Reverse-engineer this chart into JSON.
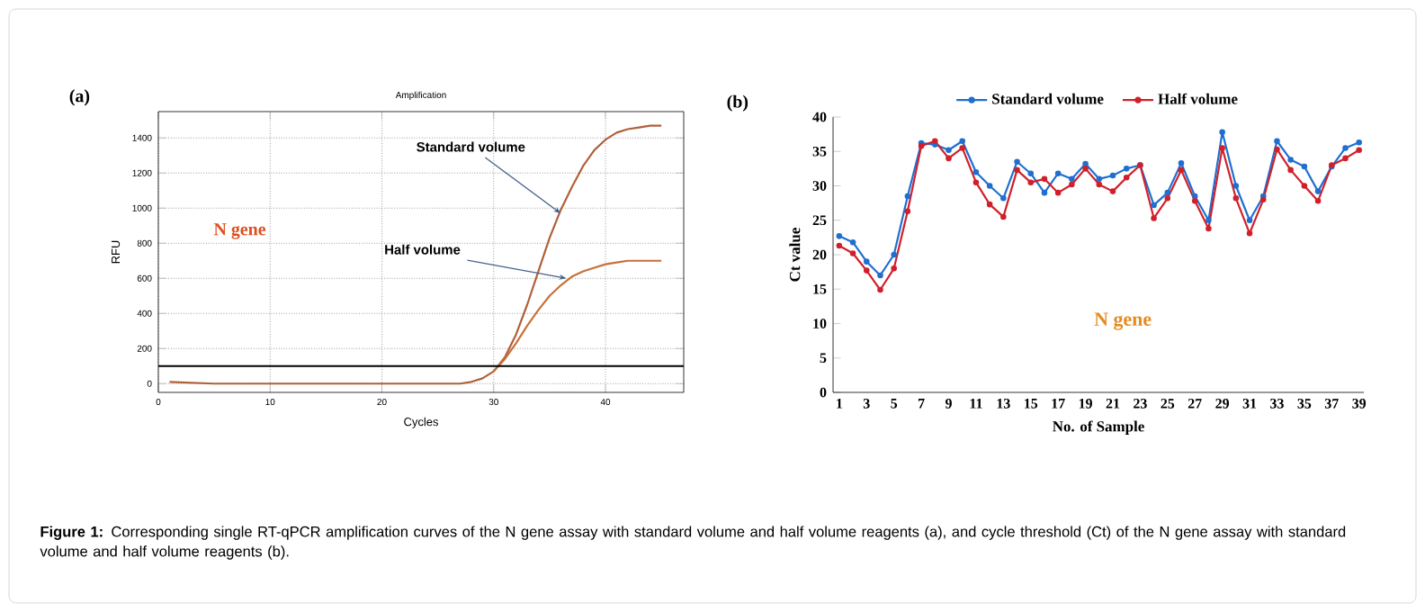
{
  "chart_data": [
    {
      "type": "line",
      "title": "Amplification",
      "xlabel": "Cycles",
      "ylabel": "RFU",
      "x": [
        1,
        5,
        10,
        15,
        20,
        25,
        27,
        28,
        29,
        30,
        31,
        32,
        33,
        34,
        35,
        36,
        37,
        38,
        39,
        40,
        41,
        42,
        43,
        44,
        45
      ],
      "series": [
        {
          "color": "#b0603a",
          "values": [
            10,
            0,
            0,
            0,
            0,
            0,
            0,
            10,
            30,
            70,
            150,
            280,
            450,
            640,
            830,
            990,
            1120,
            1240,
            1330,
            1390,
            1430,
            1450,
            1460,
            1470,
            1470
          ]
        },
        {
          "color": "#c8703a",
          "values": [
            null,
            null,
            null,
            null,
            null,
            null,
            null,
            null,
            null,
            70,
            140,
            230,
            330,
            420,
            500,
            560,
            610,
            640,
            660,
            680,
            690,
            700,
            700,
            700,
            700
          ]
        }
      ],
      "xlim": [
        0,
        47
      ],
      "ylim": [
        -50,
        1550
      ],
      "xticks": [
        0,
        10,
        20,
        30,
        40
      ],
      "yticks": [
        0,
        200,
        400,
        600,
        800,
        1000,
        1200,
        1400
      ],
      "grid": true,
      "ref_lines": [
        {
          "axis": "y",
          "value": 100,
          "color": "#000000"
        }
      ],
      "annotations": [
        "(a)",
        "N gene",
        {
          "text": "Standard volume",
          "x": 36,
          "y": 970
        },
        {
          "text": "Half volume",
          "x": 36.5,
          "y": 600
        }
      ]
    },
    {
      "type": "line",
      "xlabel": "No. of Sample",
      "ylabel": "Ct value",
      "categories": [
        "1",
        null,
        "3",
        null,
        "5",
        null,
        "7",
        null,
        "9",
        null,
        "11",
        null,
        "13",
        null,
        "15",
        null,
        "17",
        null,
        "19",
        null,
        "21",
        null,
        "23",
        null,
        "25",
        null,
        "27",
        null,
        "29",
        null,
        "31",
        null,
        "33",
        null,
        "35",
        null,
        "37",
        null,
        "39"
      ],
      "series": [
        {
          "name": "Standard volume",
          "color": "#1f6fd0",
          "values": [
            22.7,
            21.8,
            19.0,
            17.0,
            20.0,
            28.5,
            36.2,
            36.0,
            35.2,
            36.5,
            32.0,
            30.0,
            28.2,
            33.5,
            31.8,
            29.0,
            31.8,
            31.0,
            33.2,
            31.0,
            31.5,
            32.5,
            33.0,
            27.2,
            29.0,
            33.3,
            28.5,
            25.0,
            37.8,
            30.0,
            25.0,
            28.5,
            36.5,
            33.8,
            32.8,
            29.2,
            32.8,
            35.5,
            36.3
          ]
        },
        {
          "name": "Half volume",
          "color": "#d0202a",
          "values": [
            21.3,
            20.2,
            17.7,
            14.9,
            18.0,
            26.3,
            35.8,
            36.5,
            34.0,
            35.5,
            30.5,
            27.3,
            25.5,
            32.3,
            30.5,
            31.0,
            29.0,
            30.2,
            32.5,
            30.2,
            29.2,
            31.2,
            33.0,
            25.3,
            28.2,
            32.3,
            27.8,
            23.8,
            35.5,
            28.2,
            23.1,
            28.0,
            35.3,
            32.3,
            30.0,
            27.8,
            33.0,
            34.0,
            35.2
          ]
        }
      ],
      "ylim": [
        0,
        40
      ],
      "yticks": [
        0,
        5,
        10,
        15,
        20,
        25,
        30,
        35,
        40
      ],
      "marker": "circle",
      "legend": "top",
      "annotations": [
        "(b)",
        "N gene"
      ]
    },
    {
      "type": "other",
      "annotations": [
        "**Figure 1:** Corresponding single RT-qPCR amplification curves of the N gene assay with standard volume and half volume reagents (a), and cycle threshold (Ct) of the N gene assay with standard volume and half volume reagents (b)."
      ]
    }
  ]
}
